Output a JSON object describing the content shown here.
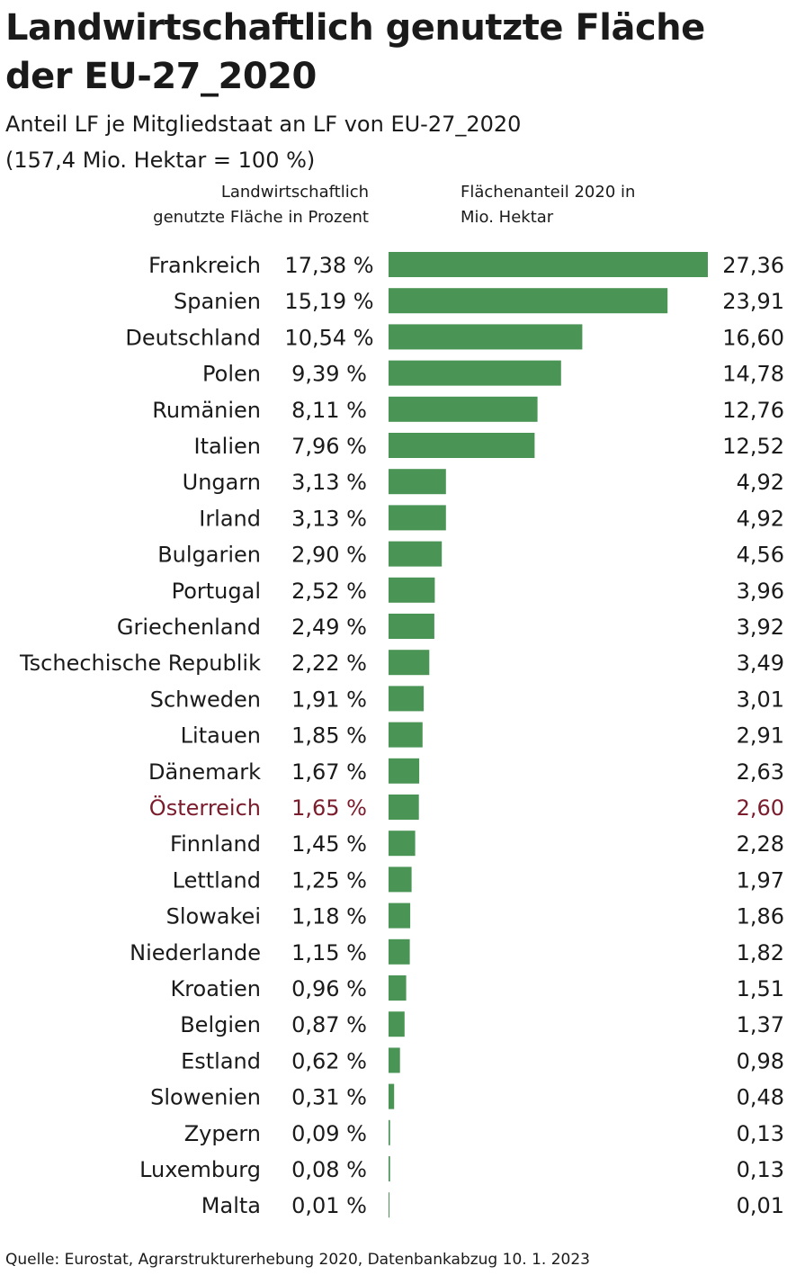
{
  "title_line1": "Landwirtschaftlich genutzte Fläche",
  "title_line2": "der EU-27_2020",
  "subtitle_line1": "Anteil LF je Mitgliedstaat an LF von EU-27_2020",
  "subtitle_line2": "(157,4 Mio. Hektar = 100 %)",
  "column_left_line1": "Landwirtschaftlich",
  "column_left_line2": "genutzte Fläche in Prozent",
  "column_right_line1": "Flächenanteil 2020 in",
  "column_right_line2": "Mio. Hektar",
  "source": "Quelle: Eurostat, Agrarstrukturerhebung 2020, Datenbankabzug 10. 1. 2023",
  "colors": {
    "bar": "#4a9455",
    "text": "#1a1a1a",
    "highlight": "#7a1c2c"
  },
  "chart_data": {
    "type": "bar",
    "orientation": "horizontal",
    "categories": [
      "Frankreich",
      "Spanien",
      "Deutschland",
      "Polen",
      "Rumänien",
      "Italien",
      "Ungarn",
      "Irland",
      "Bulgarien",
      "Portugal",
      "Griechenland",
      "Tschechische Republik",
      "Schweden",
      "Litauen",
      "Dänemark",
      "Österreich",
      "Finnland",
      "Lettland",
      "Slowakei",
      "Niederlande",
      "Kroatien",
      "Belgien",
      "Estland",
      "Slowenien",
      "Zypern",
      "Luxemburg",
      "Malta"
    ],
    "percent_labels": [
      "17,38 %",
      "15,19 %",
      "10,54 %",
      "9,39 %",
      "8,11 %",
      "7,96 %",
      "3,13 %",
      "3,13 %",
      "2,90 %",
      "2,52 %",
      "2,49 %",
      "2,22 %",
      "1,91 %",
      "1,85 %",
      "1,67 %",
      "1,65 %",
      "1,45 %",
      "1,25 %",
      "1,18 %",
      "1,15 %",
      "0,96 %",
      "0,87 %",
      "0,62 %",
      "0,31 %",
      "0,09 %",
      "0,08 %",
      "0,01 %"
    ],
    "value_labels": [
      "27,36",
      "23,91",
      "16,60",
      "14,78",
      "12,76",
      "12,52",
      "4,92",
      "4,92",
      "4,56",
      "3,96",
      "3,92",
      "3,49",
      "3,01",
      "2,91",
      "2,63",
      "2,60",
      "2,28",
      "1,97",
      "1,86",
      "1,82",
      "1,51",
      "1,37",
      "0,98",
      "0,48",
      "0,13",
      "0,13",
      "0,01"
    ],
    "values": [
      27.36,
      23.91,
      16.6,
      14.78,
      12.76,
      12.52,
      4.92,
      4.92,
      4.56,
      3.96,
      3.92,
      3.49,
      3.01,
      2.91,
      2.63,
      2.6,
      2.28,
      1.97,
      1.86,
      1.82,
      1.51,
      1.37,
      0.98,
      0.48,
      0.13,
      0.13,
      0.01
    ],
    "highlight": "Österreich",
    "grid": false,
    "legend": "none"
  }
}
